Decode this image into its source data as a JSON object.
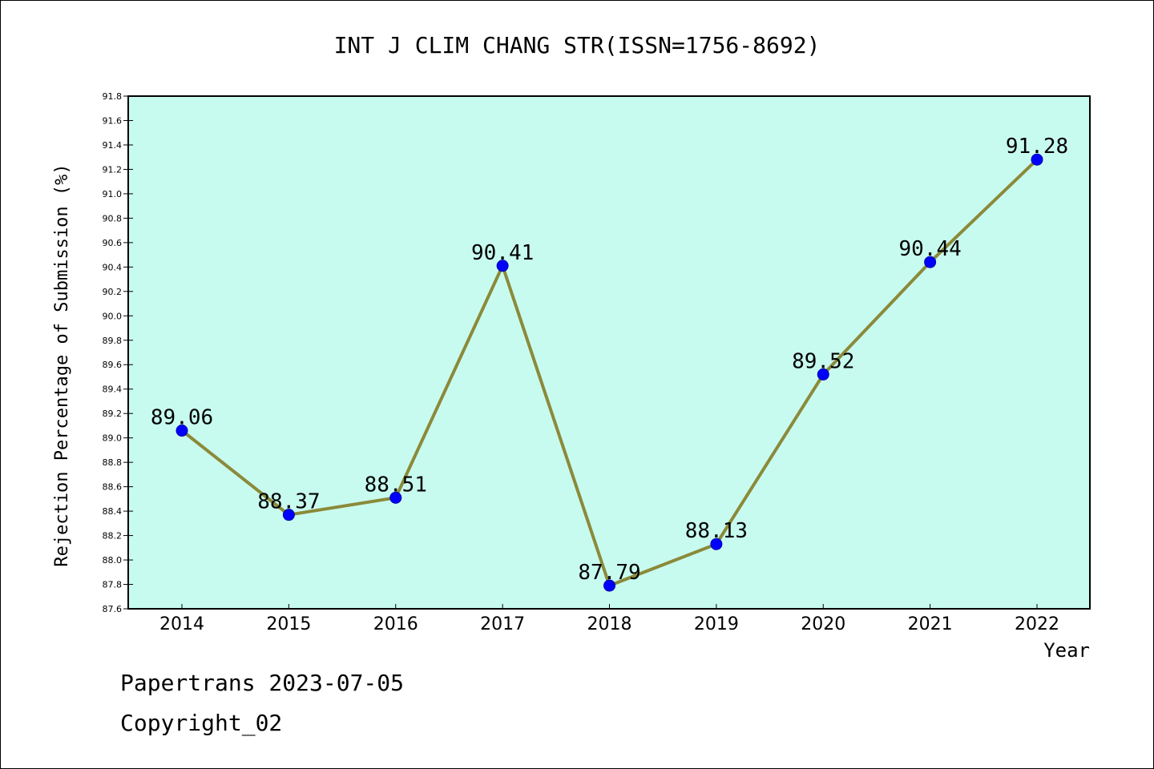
{
  "chart_data": {
    "type": "line",
    "title": "INT J CLIM CHANG STR(ISSN=1756-8692)",
    "xlabel": "Year",
    "ylabel": "Rejection Percentage of Submission (%)",
    "categories": [
      "2014",
      "2015",
      "2016",
      "2017",
      "2018",
      "2019",
      "2020",
      "2021",
      "2022"
    ],
    "values": [
      89.06,
      88.37,
      88.51,
      90.41,
      87.79,
      88.13,
      89.52,
      90.44,
      91.28
    ],
    "data_labels": [
      "89.06",
      "88.37",
      "88.51",
      "90.41",
      "87.79",
      "88.13",
      "89.52",
      "90.44",
      "91.28"
    ],
    "ylim": [
      87.6,
      91.8
    ],
    "yticks": [
      "87.6",
      "87.8",
      "88.0",
      "88.2",
      "88.4",
      "88.6",
      "88.8",
      "89.0",
      "89.2",
      "89.4",
      "89.6",
      "89.8",
      "90.0",
      "90.2",
      "90.4",
      "90.6",
      "90.8",
      "91.0",
      "91.2",
      "91.4",
      "91.6",
      "91.8"
    ],
    "grid": false,
    "legend": "none",
    "colors": {
      "plot_background": "#c8fbef",
      "line": "#8b8a3a",
      "marker": "#0000ff",
      "frame": "#000000"
    }
  },
  "footer": {
    "line1": "Papertrans 2023-07-05",
    "line2": "Copyright_02"
  }
}
